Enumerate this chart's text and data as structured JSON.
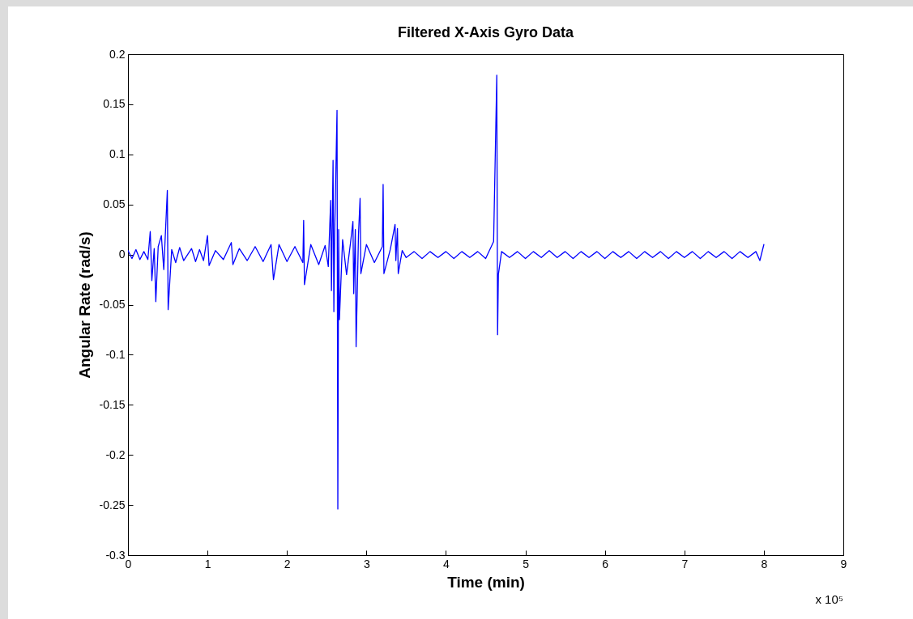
{
  "chart_data": {
    "type": "line",
    "title": "Filtered X-Axis Gyro Data",
    "xlabel": "Time (min)",
    "ylabel": "Angular Rate (rad/s)",
    "annotations": [
      "x 10⁵"
    ],
    "xlim": [
      0,
      9
    ],
    "xticks": [
      0,
      1,
      2,
      3,
      4,
      5,
      6,
      7,
      8,
      9
    ],
    "ylim": [
      -0.3,
      0.2
    ],
    "yticks": [
      -0.3,
      -0.25,
      -0.2,
      -0.15,
      -0.1,
      -0.05,
      0,
      0.05,
      0.1,
      0.15,
      0.2
    ],
    "grid": false,
    "series": [
      {
        "color": "#0000ff",
        "x": [
          0,
          0.05,
          0.1,
          0.15,
          0.2,
          0.25,
          0.28,
          0.3,
          0.33,
          0.35,
          0.38,
          0.42,
          0.45,
          0.495,
          0.505,
          0.55,
          0.6,
          0.65,
          0.7,
          0.8,
          0.85,
          0.9,
          0.95,
          1.0,
          1.02,
          1.1,
          1.2,
          1.3,
          1.32,
          1.4,
          1.5,
          1.6,
          1.7,
          1.8,
          1.83,
          1.9,
          2.0,
          2.1,
          2.2,
          2.21,
          2.22,
          2.3,
          2.4,
          2.48,
          2.52,
          2.55,
          2.56,
          2.58,
          2.59,
          2.6,
          2.63,
          2.64,
          2.65,
          2.66,
          2.7,
          2.75,
          2.8,
          2.83,
          2.84,
          2.86,
          2.87,
          2.9,
          2.92,
          2.93,
          3.0,
          3.1,
          3.2,
          3.21,
          3.22,
          3.3,
          3.36,
          3.37,
          3.39,
          3.4,
          3.45,
          3.5,
          3.6,
          3.7,
          3.8,
          3.9,
          4.0,
          4.1,
          4.2,
          4.3,
          4.4,
          4.5,
          4.6,
          4.64,
          4.65,
          4.66,
          4.7,
          4.8,
          4.9,
          5.0,
          5.1,
          5.2,
          5.3,
          5.4,
          5.5,
          5.6,
          5.7,
          5.8,
          5.9,
          6.0,
          6.1,
          6.2,
          6.3,
          6.4,
          6.5,
          6.6,
          6.7,
          6.8,
          6.9,
          7.0,
          7.1,
          7.2,
          7.3,
          7.4,
          7.5,
          7.6,
          7.7,
          7.8,
          7.9,
          7.95,
          8.0
        ],
        "values": [
          0.004,
          -0.004,
          0.005,
          -0.005,
          0.003,
          -0.005,
          0.023,
          -0.026,
          0.006,
          -0.047,
          0.008,
          0.019,
          -0.015,
          0.064,
          -0.055,
          0.005,
          -0.008,
          0.007,
          -0.006,
          0.006,
          -0.007,
          0.005,
          -0.006,
          0.019,
          -0.011,
          0.004,
          -0.005,
          0.012,
          -0.01,
          0.006,
          -0.006,
          0.008,
          -0.007,
          0.01,
          -0.025,
          0.01,
          -0.007,
          0.008,
          -0.008,
          0.034,
          -0.03,
          0.01,
          -0.01,
          0.009,
          -0.012,
          0.054,
          -0.036,
          0.094,
          -0.057,
          0.02,
          0.144,
          -0.254,
          0.025,
          -0.065,
          0.015,
          -0.02,
          0.012,
          0.033,
          -0.039,
          0.025,
          -0.092,
          0.02,
          0.056,
          -0.019,
          0.01,
          -0.008,
          0.008,
          0.07,
          -0.019,
          0.005,
          0.03,
          -0.006,
          0.026,
          -0.019,
          0.004,
          -0.003,
          0.003,
          -0.004,
          0.003,
          -0.003,
          0.003,
          -0.004,
          0.003,
          -0.003,
          0.003,
          -0.004,
          0.013,
          0.179,
          -0.08,
          -0.02,
          0.003,
          -0.003,
          0.003,
          -0.004,
          0.003,
          -0.003,
          0.004,
          -0.003,
          0.003,
          -0.004,
          0.003,
          -0.003,
          0.003,
          -0.004,
          0.003,
          -0.003,
          0.003,
          -0.004,
          0.003,
          -0.003,
          0.003,
          -0.004,
          0.003,
          -0.003,
          0.003,
          -0.004,
          0.003,
          -0.003,
          0.003,
          -0.004,
          0.003,
          -0.003,
          0.003,
          -0.006,
          0.01
        ]
      }
    ]
  }
}
